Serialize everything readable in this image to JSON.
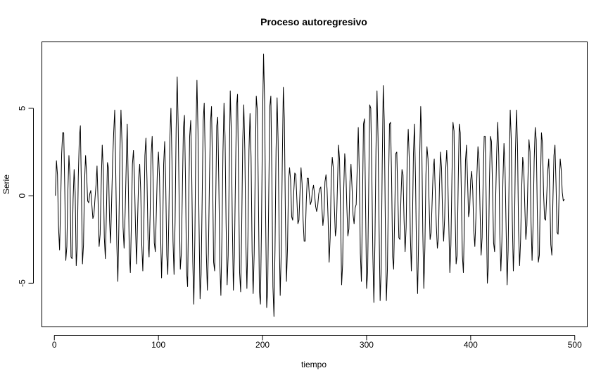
{
  "chart_data": {
    "type": "line",
    "title": "Proceso autoregresivo",
    "xlabel": "tiempo",
    "ylabel": "Serie",
    "xlim": [
      -12,
      512
    ],
    "ylim": [
      -7.5,
      8.8
    ],
    "x_ticks": [
      0,
      100,
      200,
      300,
      400,
      500
    ],
    "y_ticks": [
      -5,
      0,
      5
    ],
    "x_tick_labels": [
      "0",
      "100",
      "200",
      "300",
      "400",
      "500"
    ],
    "y_tick_labels": [
      "-5",
      "0",
      "5"
    ],
    "grid": false,
    "legend": "none",
    "line_color": "#000000",
    "series": [
      {
        "x_start": 1,
        "x_step": 1,
        "values": [
          0.0,
          2.0,
          1.2,
          -1.8,
          -3.1,
          -0.6,
          2.4,
          3.6,
          3.6,
          0.4,
          -3.7,
          -2.9,
          0.3,
          2.3,
          1.1,
          -3.5,
          -3.6,
          -0.2,
          1.5,
          0.2,
          -4.0,
          -2.9,
          1.1,
          3.3,
          4.0,
          0.4,
          -3.9,
          -2.8,
          0.8,
          2.3,
          1.2,
          -0.3,
          -0.4,
          0.1,
          0.3,
          -0.5,
          -1.3,
          -1.1,
          -0.2,
          0.6,
          1.7,
          -0.3,
          -2.9,
          -2.2,
          0.6,
          2.9,
          1.5,
          -2.4,
          -3.6,
          -1.0,
          1.9,
          1.6,
          -1.4,
          -2.7,
          -0.4,
          2.0,
          3.6,
          4.9,
          1.3,
          -2.8,
          -4.9,
          -1.7,
          2.5,
          4.9,
          3.0,
          -1.8,
          -3.0,
          -1.0,
          1.6,
          4.1,
          0.8,
          -3.3,
          -4.4,
          -1.6,
          1.8,
          2.6,
          0.9,
          -1.9,
          -3.9,
          -1.3,
          1.0,
          1.8,
          0.2,
          -2.8,
          -4.3,
          -1.6,
          2.3,
          3.3,
          0.9,
          -2.5,
          -3.5,
          -1.1,
          2.4,
          3.4,
          0.6,
          -2.7,
          -3.2,
          -0.9,
          1.5,
          2.5,
          1.1,
          -2.0,
          -4.7,
          -2.4,
          1.8,
          3.1,
          0.7,
          -3.4,
          -4.5,
          -1.2,
          3.3,
          5.0,
          2.0,
          -2.6,
          -4.5,
          -1.5,
          3.8,
          6.8,
          4.0,
          -0.8,
          -4.2,
          -3.3,
          0.3,
          3.9,
          4.6,
          0.9,
          -4.3,
          -5.2,
          -0.7,
          3.4,
          4.3,
          1.2,
          -3.8,
          -6.2,
          -2.4,
          3.5,
          6.6,
          3.7,
          -1.6,
          -5.9,
          -4.5,
          -0.2,
          4.3,
          5.3,
          2.0,
          -3.3,
          -5.4,
          -3.3,
          0.8,
          4.2,
          5.1,
          1.3,
          -3.8,
          -4.3,
          -0.5,
          4.0,
          4.5,
          0.8,
          -3.9,
          -5.7,
          -2.4,
          2.5,
          5.3,
          3.4,
          -1.6,
          -5.1,
          -3.4,
          1.3,
          6.0,
          3.7,
          -1.6,
          -5.4,
          -3.4,
          1.0,
          5.1,
          5.8,
          1.0,
          -4.4,
          -5.5,
          -1.8,
          3.2,
          5.2,
          2.6,
          -2.7,
          -5.3,
          -2.3,
          2.6,
          4.7,
          2.2,
          -3.2,
          -5.6,
          -3.3,
          1.6,
          5.7,
          4.9,
          0.3,
          -5.5,
          -6.2,
          -1.8,
          4.2,
          8.1,
          5.4,
          -1.2,
          -6.4,
          -5.3,
          0.1,
          5.1,
          5.7,
          1.1,
          -5.2,
          -6.9,
          -3.1,
          2.6,
          5.6,
          3.1,
          -2.2,
          -5.7,
          -3.2,
          1.9,
          6.2,
          4.4,
          -1.3,
          -4.9,
          -3.0,
          0.8,
          1.6,
          0.9,
          -1.2,
          -1.4,
          0.2,
          1.3,
          1.2,
          -0.2,
          -1.6,
          -1.4,
          0.2,
          1.6,
          0.7,
          -1.4,
          -2.6,
          -2.6,
          -0.4,
          1.0,
          1.0,
          0.0,
          -0.5,
          -0.3,
          0.3,
          0.6,
          0.1,
          -0.6,
          -0.9,
          -0.6,
          0.1,
          0.4,
          0.5,
          -0.6,
          -1.7,
          -1.1,
          0.8,
          1.2,
          0.4,
          -1.3,
          -3.8,
          -2.4,
          0.9,
          2.2,
          1.6,
          -0.6,
          -2.3,
          -1.8,
          0.6,
          2.9,
          2.1,
          -1.0,
          -5.1,
          -3.9,
          0.3,
          2.4,
          1.6,
          -0.6,
          -2.3,
          -1.9,
          0.8,
          1.8,
          0.5,
          -1.1,
          -1.6,
          -0.7,
          -0.5,
          1.6,
          3.9,
          1.3,
          -3.3,
          -4.9,
          -0.6,
          4.1,
          4.4,
          -0.5,
          -5.3,
          -4.4,
          0.3,
          5.2,
          5.0,
          1.4,
          -3.4,
          -6.1,
          -2.7,
          2.6,
          6.0,
          3.3,
          -1.8,
          -6.0,
          -4.3,
          1.7,
          6.3,
          4.3,
          -1.6,
          -6.0,
          -4.2,
          0.4,
          4.1,
          4.2,
          1.1,
          -3.5,
          -4.2,
          -1.1,
          2.4,
          2.5,
          0.0,
          -2.4,
          -2.5,
          -0.1,
          1.5,
          1.2,
          -1.4,
          -3.2,
          -1.8,
          2.0,
          3.8,
          2.1,
          -2.2,
          -4.3,
          -1.8,
          2.4,
          4.1,
          1.0,
          -3.4,
          -5.6,
          -2.5,
          2.2,
          5.1,
          3.1,
          -2.1,
          -5.3,
          -3.0,
          1.2,
          2.8,
          2.1,
          -0.3,
          -2.5,
          -2.1,
          -0.3,
          1.5,
          2.1,
          0.2,
          -1.7,
          -3.0,
          -2.4,
          0.6,
          2.5,
          1.6,
          -1.1,
          -2.6,
          -1.3,
          1.5,
          2.6,
          1.0,
          -1.7,
          -4.4,
          -2.8,
          1.1,
          4.2,
          3.7,
          -0.8,
          -3.9,
          -3.4,
          0.6,
          4.1,
          3.6,
          0.3,
          -3.4,
          -4.4,
          -1.5,
          2.0,
          2.9,
          0.9,
          -1.2,
          -0.8,
          0.9,
          1.4,
          0.3,
          -2.0,
          -2.9,
          -1.3,
          1.2,
          2.8,
          2.1,
          -0.8,
          -3.4,
          -2.4,
          0.9,
          3.4,
          3.4,
          -0.6,
          -5.0,
          -4.1,
          0.8,
          3.4,
          3.1,
          0.5,
          -2.7,
          -3.2,
          -0.2,
          2.5,
          4.2,
          2.3,
          -2.2,
          -4.3,
          -2.6,
          0.9,
          3.0,
          1.6,
          -1.7,
          -5.1,
          -3.1,
          1.4,
          4.9,
          3.2,
          -1.4,
          -4.3,
          -2.4,
          2.5,
          4.9,
          2.9,
          -2.0,
          -4.0,
          -2.5,
          0.4,
          2.2,
          1.6,
          -0.6,
          -2.5,
          -1.7,
          0.9,
          3.2,
          2.5,
          -1.5,
          -3.7,
          -1.6,
          2.0,
          3.9,
          3.2,
          -0.9,
          -3.8,
          -3.4,
          0.5,
          3.6,
          3.0,
          0.2,
          -1.3,
          -1.4,
          -0.1,
          1.4,
          2.1,
          0.1,
          -2.8,
          -3.4,
          -0.3,
          2.3,
          2.9,
          0.7,
          -2.1,
          -2.2,
          0.2,
          2.1,
          1.5,
          0.2,
          -0.3,
          -0.2
        ]
      }
    ]
  }
}
